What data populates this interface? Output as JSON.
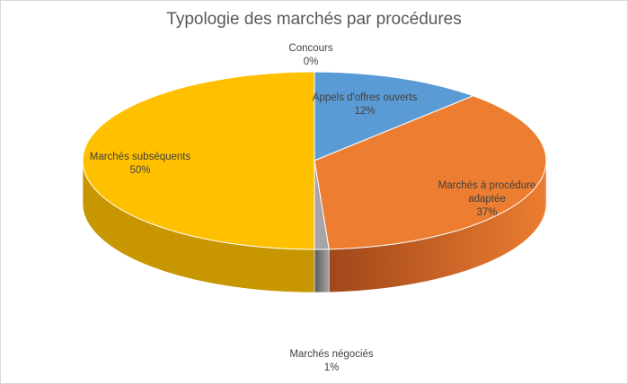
{
  "chart_data": {
    "type": "pie",
    "title": "Typologie des marchés par procédures",
    "labels": [
      "Appels d'offres ouverts",
      "Marchés à procédure adaptée",
      "Marchés négociés",
      "Marchés subséquents",
      "Concours"
    ],
    "values": [
      12,
      37,
      1,
      50,
      0
    ],
    "percent_labels": [
      "12%",
      "37%",
      "1%",
      "50%",
      "0%"
    ],
    "colors": [
      "#5b9bd5",
      "#ed7d31",
      "#a5a5a5",
      "#ffc000",
      "#4472c4"
    ],
    "side_colors": [
      "#2e5f94",
      "#a0471a",
      "#5a5a5a",
      "#c89600",
      "#2f4f8a"
    ],
    "legend": "none",
    "style": "3d"
  }
}
